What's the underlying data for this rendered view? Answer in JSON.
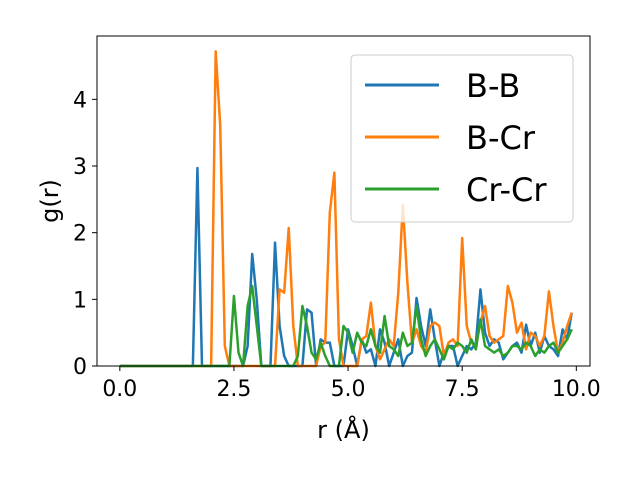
{
  "chart_data": {
    "type": "line",
    "xlabel": "r (Å)",
    "ylabel": "g(r)",
    "xlim": [
      -0.5,
      10.3
    ],
    "ylim": [
      0,
      4.95
    ],
    "xticks": [
      {
        "value": 0.0,
        "label": "0.0"
      },
      {
        "value": 2.5,
        "label": "2.5"
      },
      {
        "value": 5.0,
        "label": "5.0"
      },
      {
        "value": 7.5,
        "label": "7.5"
      },
      {
        "value": 10.0,
        "label": "10.0"
      }
    ],
    "yticks": [
      {
        "value": 0,
        "label": "0"
      },
      {
        "value": 1,
        "label": "1"
      },
      {
        "value": 2,
        "label": "2"
      },
      {
        "value": 3,
        "label": "3"
      },
      {
        "value": 4,
        "label": "4"
      }
    ],
    "grid": false,
    "legend": "top-right",
    "series": [
      {
        "name": "B-B",
        "color": "#1f77b4",
        "points": [
          [
            0,
            0
          ],
          [
            1.6,
            0
          ],
          [
            1.7,
            2.97
          ],
          [
            1.8,
            0
          ],
          [
            2.7,
            0
          ],
          [
            2.8,
            0.3
          ],
          [
            2.9,
            1.68
          ],
          [
            3.0,
            1.0
          ],
          [
            3.1,
            0
          ],
          [
            3.3,
            0
          ],
          [
            3.4,
            1.85
          ],
          [
            3.5,
            0.6
          ],
          [
            3.6,
            0.15
          ],
          [
            3.7,
            0
          ],
          [
            4.0,
            0
          ],
          [
            4.1,
            0.85
          ],
          [
            4.2,
            0.8
          ],
          [
            4.3,
            0
          ],
          [
            4.4,
            0.4
          ],
          [
            4.5,
            0.35
          ],
          [
            4.6,
            0.35
          ],
          [
            4.7,
            0
          ],
          [
            4.9,
            0
          ],
          [
            5.0,
            0.55
          ],
          [
            5.1,
            0.3
          ],
          [
            5.2,
            0
          ],
          [
            5.3,
            0.4
          ],
          [
            5.4,
            0.2
          ],
          [
            5.5,
            0.25
          ],
          [
            5.6,
            0
          ],
          [
            5.7,
            0.55
          ],
          [
            5.8,
            0.35
          ],
          [
            5.9,
            0
          ],
          [
            6.0,
            0.2
          ],
          [
            6.1,
            0.4
          ],
          [
            6.2,
            0
          ],
          [
            6.3,
            0.15
          ],
          [
            6.4,
            0.2
          ],
          [
            6.5,
            1.02
          ],
          [
            6.6,
            0.6
          ],
          [
            6.7,
            0.3
          ],
          [
            6.8,
            0.85
          ],
          [
            6.9,
            0.4
          ],
          [
            7.0,
            0
          ],
          [
            7.1,
            0.2
          ],
          [
            7.2,
            0.3
          ],
          [
            7.3,
            0.3
          ],
          [
            7.4,
            0
          ],
          [
            7.5,
            0.15
          ],
          [
            7.6,
            0.3
          ],
          [
            7.7,
            0.25
          ],
          [
            7.8,
            0.35
          ],
          [
            7.9,
            1.15
          ],
          [
            8.0,
            0.5
          ],
          [
            8.1,
            0.3
          ],
          [
            8.2,
            0.4
          ],
          [
            8.3,
            0.35
          ],
          [
            8.4,
            0.1
          ],
          [
            8.5,
            0.2
          ],
          [
            8.6,
            0.3
          ],
          [
            8.7,
            0.35
          ],
          [
            8.8,
            0.2
          ],
          [
            8.9,
            0.62
          ],
          [
            9.0,
            0.3
          ],
          [
            9.1,
            0.5
          ],
          [
            9.2,
            0.2
          ],
          [
            9.3,
            0.45
          ],
          [
            9.4,
            0.3
          ],
          [
            9.5,
            0.25
          ],
          [
            9.6,
            0.15
          ],
          [
            9.7,
            0.55
          ],
          [
            9.8,
            0.4
          ],
          [
            9.9,
            0.8
          ]
        ]
      },
      {
        "name": "B-Cr",
        "color": "#ff7f0e",
        "points": [
          [
            0,
            0
          ],
          [
            2.0,
            0
          ],
          [
            2.1,
            4.72
          ],
          [
            2.2,
            3.6
          ],
          [
            2.3,
            0.3
          ],
          [
            2.4,
            0
          ],
          [
            3.4,
            0
          ],
          [
            3.5,
            1.15
          ],
          [
            3.6,
            1.1
          ],
          [
            3.7,
            2.07
          ],
          [
            3.8,
            0.6
          ],
          [
            3.9,
            0
          ],
          [
            4.3,
            0
          ],
          [
            4.4,
            0.3
          ],
          [
            4.5,
            0.35
          ],
          [
            4.6,
            2.3
          ],
          [
            4.7,
            2.9
          ],
          [
            4.8,
            0.4
          ],
          [
            4.9,
            0
          ],
          [
            5.2,
            0
          ],
          [
            5.3,
            0.4
          ],
          [
            5.4,
            0.45
          ],
          [
            5.5,
            0.95
          ],
          [
            5.6,
            0.3
          ],
          [
            5.7,
            0.1
          ],
          [
            5.8,
            0.25
          ],
          [
            5.9,
            0.4
          ],
          [
            6.0,
            0.3
          ],
          [
            6.1,
            1.1
          ],
          [
            6.2,
            2.42
          ],
          [
            6.3,
            1.25
          ],
          [
            6.4,
            0.35
          ],
          [
            6.5,
            0.55
          ],
          [
            6.6,
            0.3
          ],
          [
            6.7,
            0.2
          ],
          [
            6.8,
            0.6
          ],
          [
            6.9,
            0.65
          ],
          [
            7.0,
            0.6
          ],
          [
            7.1,
            0.15
          ],
          [
            7.2,
            0.35
          ],
          [
            7.3,
            0.4
          ],
          [
            7.4,
            0.3
          ],
          [
            7.5,
            1.92
          ],
          [
            7.6,
            0.6
          ],
          [
            7.7,
            0.35
          ],
          [
            7.8,
            0.3
          ],
          [
            7.9,
            0.65
          ],
          [
            8.0,
            0.9
          ],
          [
            8.1,
            0.45
          ],
          [
            8.2,
            0.35
          ],
          [
            8.3,
            0.4
          ],
          [
            8.4,
            0.45
          ],
          [
            8.5,
            1.2
          ],
          [
            8.6,
            0.95
          ],
          [
            8.7,
            0.5
          ],
          [
            8.8,
            0.65
          ],
          [
            8.9,
            0.25
          ],
          [
            9.0,
            0.5
          ],
          [
            9.1,
            0.45
          ],
          [
            9.2,
            0.3
          ],
          [
            9.3,
            0.45
          ],
          [
            9.4,
            1.12
          ],
          [
            9.5,
            0.6
          ],
          [
            9.6,
            0.2
          ],
          [
            9.7,
            0.35
          ],
          [
            9.8,
            0.6
          ],
          [
            9.9,
            0.8
          ]
        ]
      },
      {
        "name": "Cr-Cr",
        "color": "#2ca02c",
        "points": [
          [
            0,
            0
          ],
          [
            2.4,
            0
          ],
          [
            2.5,
            1.05
          ],
          [
            2.6,
            0.2
          ],
          [
            2.7,
            0
          ],
          [
            2.8,
            0.9
          ],
          [
            2.9,
            1.2
          ],
          [
            3.0,
            0.6
          ],
          [
            3.1,
            0
          ],
          [
            3.8,
            0
          ],
          [
            3.9,
            0.15
          ],
          [
            4.0,
            0.9
          ],
          [
            4.1,
            0.6
          ],
          [
            4.2,
            0.2
          ],
          [
            4.3,
            0.1
          ],
          [
            4.4,
            0.35
          ],
          [
            4.5,
            0.15
          ],
          [
            4.6,
            0
          ],
          [
            4.8,
            0
          ],
          [
            4.9,
            0.6
          ],
          [
            5.0,
            0.5
          ],
          [
            5.1,
            0.2
          ],
          [
            5.2,
            0.5
          ],
          [
            5.3,
            0.35
          ],
          [
            5.4,
            0.3
          ],
          [
            5.5,
            0.55
          ],
          [
            5.6,
            0.3
          ],
          [
            5.7,
            0.2
          ],
          [
            5.8,
            0.75
          ],
          [
            5.9,
            0.3
          ],
          [
            6.0,
            0.25
          ],
          [
            6.1,
            0.15
          ],
          [
            6.2,
            0.5
          ],
          [
            6.3,
            0.3
          ],
          [
            6.4,
            0.35
          ],
          [
            6.5,
            0.9
          ],
          [
            6.6,
            0.4
          ],
          [
            6.7,
            0.15
          ],
          [
            6.8,
            0.3
          ],
          [
            6.9,
            0.4
          ],
          [
            7.0,
            0.25
          ],
          [
            7.1,
            0.1
          ],
          [
            7.2,
            0.3
          ],
          [
            7.3,
            0.25
          ],
          [
            7.4,
            0.35
          ],
          [
            7.5,
            0.3
          ],
          [
            7.6,
            0.2
          ],
          [
            7.7,
            0.4
          ],
          [
            7.8,
            0.25
          ],
          [
            7.9,
            0.7
          ],
          [
            8.0,
            0.3
          ],
          [
            8.1,
            0.25
          ],
          [
            8.2,
            0.2
          ],
          [
            8.3,
            0.25
          ],
          [
            8.4,
            0.15
          ],
          [
            8.5,
            0.2
          ],
          [
            8.6,
            0.3
          ],
          [
            8.7,
            0.3
          ],
          [
            8.8,
            0.25
          ],
          [
            8.9,
            0.35
          ],
          [
            9.0,
            0.3
          ],
          [
            9.1,
            0.15
          ],
          [
            9.2,
            0.25
          ],
          [
            9.3,
            0.2
          ],
          [
            9.4,
            0.3
          ],
          [
            9.5,
            0.35
          ],
          [
            9.6,
            0.2
          ],
          [
            9.7,
            0.3
          ],
          [
            9.8,
            0.4
          ],
          [
            9.9,
            0.55
          ]
        ]
      }
    ]
  }
}
